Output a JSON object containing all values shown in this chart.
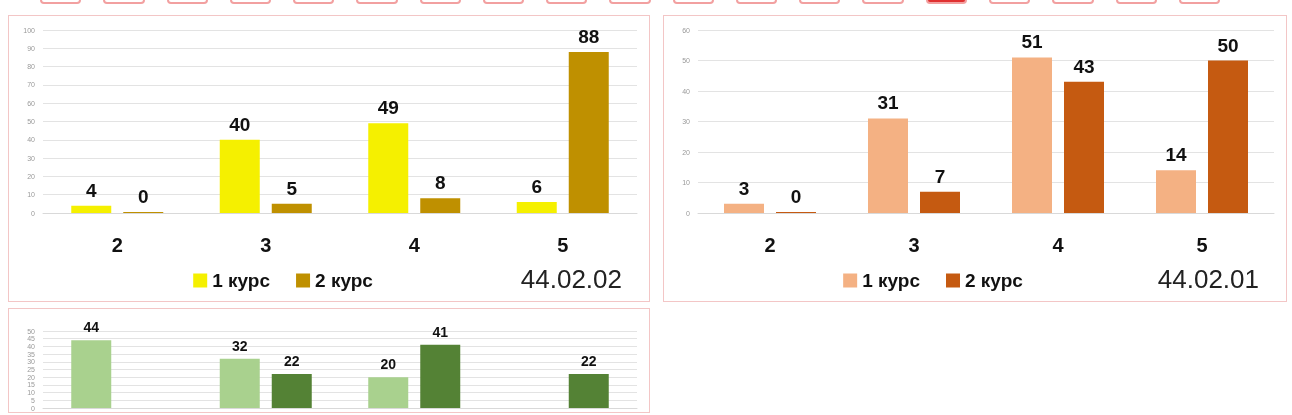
{
  "chart_data": [
    {
      "type": "bar",
      "title": "44.02.02",
      "categories": [
        "2",
        "3",
        "4",
        "5"
      ],
      "series": [
        {
          "name": "1 курс",
          "color": "#f5f000",
          "values": [
            4,
            40,
            49,
            6
          ]
        },
        {
          "name": "2 курс",
          "color": "#bf9000",
          "values": [
            0,
            5,
            8,
            88
          ]
        }
      ],
      "ylim": [
        0,
        100
      ],
      "yticks": [
        0,
        10,
        20,
        30,
        40,
        50,
        60,
        70,
        80,
        90,
        100
      ],
      "grid": "y",
      "legend": "bottom",
      "data_labels": true
    },
    {
      "type": "bar",
      "title": "44.02.01",
      "categories": [
        "2",
        "3",
        "4",
        "5"
      ],
      "series": [
        {
          "name": "1 курс",
          "color": "#f4b183",
          "values": [
            3,
            31,
            51,
            14
          ]
        },
        {
          "name": "2 курс",
          "color": "#c55a11",
          "values": [
            0,
            7,
            43,
            50
          ]
        }
      ],
      "ylim": [
        0,
        60
      ],
      "yticks": [
        0,
        10,
        20,
        30,
        40,
        50,
        60
      ],
      "grid": "y",
      "legend": "bottom",
      "data_labels": true
    },
    {
      "type": "bar",
      "categories": [
        null,
        null,
        null,
        null
      ],
      "series": [
        {
          "color": "#a9d18e",
          "values": [
            44,
            32,
            20,
            null
          ]
        },
        {
          "color": "#548235",
          "values": [
            null,
            22,
            41,
            22
          ]
        }
      ],
      "ylim": [
        0,
        50
      ],
      "yticks": [
        0,
        5,
        10,
        15,
        20,
        25,
        30,
        35,
        40,
        45,
        50
      ],
      "grid": "y",
      "tick_labels": "y",
      "data_labels": true
    }
  ]
}
